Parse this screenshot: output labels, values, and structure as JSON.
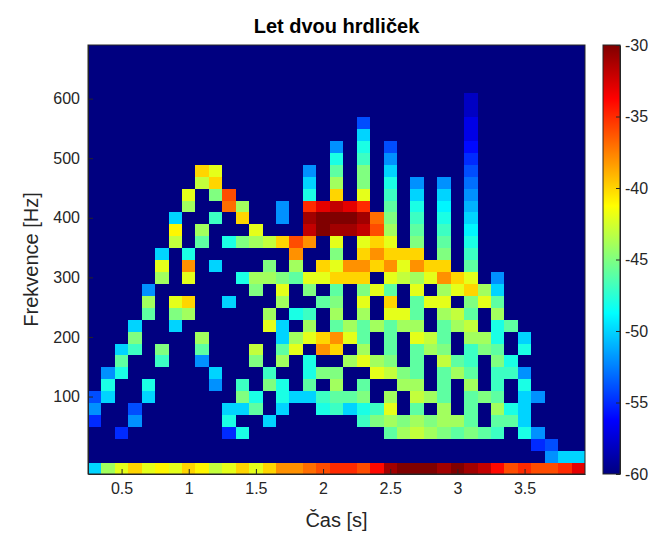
{
  "chart_data": {
    "type": "heatmap",
    "title": "Let dvou hrdliček",
    "x_label": "Čas [s]",
    "y_label": "Frekvence [Hz]",
    "x": [
      0.3,
      0.4,
      0.5,
      0.6,
      0.7,
      0.8,
      0.9,
      1.0,
      1.1,
      1.2,
      1.3,
      1.4,
      1.5,
      1.6,
      1.7,
      1.8,
      1.9,
      2.0,
      2.1,
      2.2,
      2.3,
      2.4,
      2.5,
      2.6,
      2.7,
      2.8,
      2.9,
      3.0,
      3.1,
      3.2,
      3.3,
      3.4,
      3.5,
      3.6,
      3.7,
      3.8,
      3.9
    ],
    "y": [
      -20,
      0,
      20,
      40,
      60,
      80,
      100,
      120,
      140,
      160,
      180,
      200,
      220,
      240,
      260,
      280,
      300,
      320,
      340,
      360,
      380,
      400,
      420,
      440,
      460,
      480,
      500,
      520,
      540,
      560,
      580,
      600,
      620,
      640,
      660,
      680
    ],
    "z": [
      [
        -50,
        -60,
        -60,
        -60,
        -55,
        -52,
        -54,
        -60,
        -60,
        -60,
        -60,
        -60,
        -60,
        -60,
        -60,
        -60,
        -60,
        -60,
        -60,
        -60,
        -60,
        -60,
        -60,
        -60,
        -60,
        -60,
        -60,
        -60,
        -60,
        -60,
        -60,
        -60,
        -60,
        -60,
        -60,
        -60
      ],
      [
        -44,
        -60,
        -60,
        -60,
        -60,
        -60,
        -50,
        -48,
        -52,
        -60,
        -60,
        -60,
        -60,
        -60,
        -60,
        -60,
        -60,
        -60,
        -60,
        -60,
        -60,
        -60,
        -60,
        -60,
        -60,
        -60,
        -60,
        -60,
        -60,
        -60,
        -60,
        -60,
        -60,
        -60,
        -60,
        -60
      ],
      [
        -42,
        -60,
        -60,
        -55,
        -60,
        -60,
        -60,
        -60,
        -48,
        -46,
        -50,
        -60,
        -60,
        -60,
        -60,
        -60,
        -60,
        -60,
        -60,
        -60,
        -60,
        -60,
        -60,
        -60,
        -60,
        -60,
        -60,
        -60,
        -60,
        -60,
        -60,
        -60,
        -60,
        -60,
        -60,
        -60
      ],
      [
        -40,
        -60,
        -60,
        -60,
        -52,
        -54,
        -60,
        -60,
        -60,
        -60,
        -47,
        -45,
        -50,
        -60,
        -60,
        -60,
        -60,
        -60,
        -60,
        -60,
        -60,
        -60,
        -60,
        -60,
        -60,
        -60,
        -60,
        -60,
        -60,
        -60,
        -60,
        -60,
        -60,
        -60,
        -60,
        -60
      ],
      [
        -42,
        -60,
        -60,
        -60,
        -60,
        -60,
        -50,
        -48,
        -60,
        -60,
        -60,
        -60,
        -60,
        -46,
        -44,
        -52,
        -60,
        -60,
        -60,
        -60,
        -60,
        -60,
        -60,
        -60,
        -60,
        -60,
        -60,
        -60,
        -60,
        -60,
        -60,
        -60,
        -60,
        -60,
        -60,
        -60
      ],
      [
        -41,
        -60,
        -60,
        -60,
        -60,
        -60,
        -60,
        -60,
        -60,
        -47,
        -45,
        -60,
        -60,
        -60,
        -60,
        -60,
        -44,
        -42,
        -50,
        -60,
        -60,
        -60,
        -60,
        -60,
        -60,
        -60,
        -60,
        -60,
        -60,
        -60,
        -60,
        -60,
        -60,
        -60,
        -60,
        -60
      ],
      [
        -42,
        -60,
        -60,
        -60,
        -60,
        -60,
        -60,
        -60,
        -60,
        -60,
        -60,
        -60,
        -50,
        -45,
        -42,
        -60,
        -60,
        -60,
        -60,
        -43,
        -41,
        -50,
        -60,
        -60,
        -60,
        -60,
        -60,
        -60,
        -60,
        -60,
        -60,
        -60,
        -60,
        -60,
        -60,
        -60
      ],
      [
        -40,
        -60,
        -60,
        -60,
        -60,
        -60,
        -60,
        -60,
        -60,
        -60,
        -60,
        -60,
        -60,
        -44,
        -40,
        -60,
        -42,
        -38,
        -48,
        -60,
        -60,
        -60,
        -44,
        -42,
        -60,
        -60,
        -60,
        -60,
        -60,
        -60,
        -60,
        -60,
        -60,
        -60,
        -60,
        -60
      ],
      [
        -41,
        -60,
        -60,
        -60,
        -60,
        -60,
        -60,
        -60,
        -60,
        -52,
        -46,
        -44,
        -60,
        -60,
        -60,
        -60,
        -60,
        -60,
        -60,
        -46,
        -44,
        -60,
        -60,
        -60,
        -43,
        -40,
        -60,
        -60,
        -60,
        -60,
        -60,
        -60,
        -60,
        -60,
        -60,
        -60
      ],
      [
        -43,
        -60,
        -60,
        -60,
        -60,
        -60,
        -60,
        -52,
        -50,
        -60,
        -60,
        -60,
        -60,
        -60,
        -60,
        -60,
        -60,
        -50,
        -60,
        -60,
        -60,
        -47,
        -60,
        -45,
        -40,
        -42,
        -60,
        -60,
        -60,
        -60,
        -60,
        -60,
        -60,
        -60,
        -60,
        -60
      ],
      [
        -42,
        -60,
        -60,
        -55,
        -48,
        -50,
        -60,
        -60,
        -60,
        -60,
        -60,
        -60,
        -60,
        -60,
        -50,
        -60,
        -60,
        -60,
        -60,
        -48,
        -60,
        -60,
        -37,
        -36,
        -60,
        -60,
        -60,
        -60,
        -60,
        -60,
        -60,
        -60,
        -60,
        -60,
        -60,
        -60
      ],
      [
        -40,
        -60,
        -60,
        -48,
        -60,
        -50,
        -45,
        -47,
        -60,
        -60,
        -60,
        -60,
        -60,
        -60,
        -60,
        -60,
        -48,
        -60,
        -60,
        -45,
        -60,
        -40,
        -44,
        -60,
        -60,
        -60,
        -60,
        -60,
        -60,
        -60,
        -60,
        -60,
        -60,
        -60,
        -60,
        -60
      ],
      [
        -42,
        -60,
        -60,
        -60,
        -60,
        -46,
        -48,
        -60,
        -60,
        -45,
        -43,
        -60,
        -60,
        -60,
        -60,
        -45,
        -44,
        -60,
        -60,
        -44,
        -42,
        -60,
        -60,
        -60,
        -60,
        -60,
        -60,
        -60,
        -60,
        -60,
        -60,
        -60,
        -60,
        -60,
        -60,
        -60
      ],
      [
        -40,
        -60,
        -60,
        -60,
        -50,
        -60,
        -60,
        -45,
        -47,
        -60,
        -60,
        -60,
        -42,
        -44,
        -60,
        -60,
        -44,
        -45,
        -60,
        -43,
        -60,
        -60,
        -60,
        -60,
        -60,
        -60,
        -60,
        -60,
        -60,
        -60,
        -60,
        -60,
        -60,
        -60,
        -60,
        -60
      ],
      [
        -38,
        -60,
        -60,
        -60,
        -60,
        -50,
        -48,
        -48,
        -60,
        -44,
        -46,
        -50,
        -50,
        -60,
        -44,
        -42,
        -45,
        -60,
        -60,
        -40,
        -60,
        -52,
        -52,
        -60,
        -60,
        -60,
        -60,
        -60,
        -60,
        -60,
        -60,
        -60,
        -60,
        -60,
        -60,
        -60
      ],
      [
        -38,
        -60,
        -60,
        -60,
        -60,
        -60,
        -50,
        -60,
        -60,
        -60,
        -42,
        -44,
        -60,
        -48,
        -60,
        -60,
        -46,
        -44,
        -38,
        -36,
        -60,
        -60,
        -60,
        -60,
        -60,
        -60,
        -60,
        -60,
        -60,
        -60,
        -60,
        -60,
        -60,
        -60,
        -60,
        -60
      ],
      [
        -37,
        -60,
        -60,
        -60,
        -60,
        -60,
        -50,
        -46,
        -48,
        -48,
        -60,
        -42,
        -44,
        -47,
        -60,
        -45,
        -42,
        -60,
        -60,
        -38,
        -32,
        -31,
        -35,
        -48,
        -50,
        -52,
        -60,
        -60,
        -60,
        -60,
        -60,
        -60,
        -60,
        -60,
        -60,
        -60
      ],
      [
        -36,
        -60,
        -60,
        -60,
        -60,
        -48,
        -47,
        -60,
        -45,
        -60,
        -38,
        -40,
        -60,
        -60,
        -46,
        -60,
        -42,
        -40,
        -60,
        -60,
        -30,
        -30,
        -33,
        -60,
        -60,
        -60,
        -60,
        -60,
        -60,
        -60,
        -60,
        -60,
        -60,
        -60,
        -60,
        -60
      ],
      [
        -35,
        -60,
        -60,
        -60,
        -60,
        -47,
        -46,
        -44,
        -45,
        -60,
        -40,
        -38,
        -46,
        -44,
        -45,
        -46,
        -40,
        -42,
        -45,
        -42,
        -31,
        -30,
        -32,
        -40,
        -44,
        -46,
        -48,
        -52,
        -60,
        -60,
        -60,
        -60,
        -60,
        -60,
        -60,
        -60
      ],
      [
        -35,
        -60,
        -60,
        -60,
        -60,
        -50,
        -46,
        -60,
        -60,
        -44,
        -60,
        -42,
        -44,
        -60,
        -60,
        -60,
        -40,
        -38,
        -60,
        -60,
        -31,
        -30,
        -33,
        -60,
        -60,
        -60,
        -60,
        -60,
        -60,
        -60,
        -60,
        -60,
        -60,
        -60,
        -60,
        -60
      ],
      [
        -36,
        -60,
        -60,
        -60,
        -47,
        -48,
        -45,
        -46,
        -60,
        -42,
        -44,
        -46,
        -46,
        -44,
        -42,
        -45,
        -40,
        -38,
        -40,
        -42,
        -32,
        -31,
        -35,
        -42,
        -45,
        -45,
        -47,
        -48,
        -50,
        -54,
        -60,
        -60,
        -60,
        -60,
        -60,
        -60
      ],
      [
        -34,
        -60,
        -60,
        -60,
        -45,
        -47,
        -60,
        -60,
        -42,
        -44,
        -60,
        -60,
        -44,
        -60,
        -60,
        -42,
        -60,
        -40,
        -38,
        -40,
        -36,
        -37,
        -60,
        -60,
        -60,
        -60,
        -60,
        -60,
        -60,
        -60,
        -60,
        -60,
        -60,
        -60,
        -60,
        -60
      ],
      [
        -31,
        -60,
        -60,
        -46,
        -44,
        -42,
        -44,
        -60,
        -43,
        -45,
        -46,
        -46,
        -46,
        -42,
        -40,
        -46,
        -42,
        -38,
        -40,
        -42,
        -44,
        -45,
        -46,
        -47,
        -48,
        -50,
        -52,
        -54,
        -60,
        -60,
        -60,
        -60,
        -60,
        -60,
        -60,
        -60
      ],
      [
        -30,
        -60,
        -60,
        -44,
        -45,
        -60,
        -60,
        -44,
        -45,
        -60,
        -60,
        -60,
        -44,
        -42,
        -60,
        -60,
        -43,
        -42,
        -40,
        -60,
        -60,
        -60,
        -60,
        -60,
        -60,
        -60,
        -60,
        -60,
        -60,
        -60,
        -60,
        -60,
        -60,
        -60,
        -60,
        -60
      ],
      [
        -30,
        -60,
        -60,
        -43,
        -44,
        -46,
        -43,
        -44,
        -46,
        -46,
        -46,
        -42,
        -44,
        -46,
        -46,
        -42,
        -44,
        -38,
        -40,
        -45,
        -46,
        -47,
        -48,
        -50,
        -52,
        -60,
        -60,
        -60,
        -60,
        -60,
        -60,
        -60,
        -60,
        -60,
        -60,
        -60
      ],
      [
        -30,
        -60,
        -60,
        -44,
        -45,
        -60,
        -44,
        -60,
        -60,
        -60,
        -44,
        -43,
        -60,
        -60,
        -42,
        -60,
        -42,
        -40,
        -60,
        -60,
        -60,
        -60,
        -60,
        -60,
        -60,
        -60,
        -60,
        -60,
        -60,
        -60,
        -60,
        -60,
        -60,
        -60,
        -60,
        -60
      ],
      [
        -31,
        -60,
        -60,
        -45,
        -44,
        -44,
        -46,
        -46,
        -46,
        -43,
        -45,
        -46,
        -46,
        -44,
        -42,
        -44,
        -38,
        -40,
        -45,
        -46,
        -47,
        -48,
        -49,
        -50,
        -52,
        -60,
        -60,
        -60,
        -60,
        -60,
        -60,
        -60,
        -60,
        -60,
        -60,
        -60
      ],
      [
        -30,
        -60,
        -60,
        -46,
        -44,
        -60,
        -60,
        -60,
        -44,
        -46,
        -60,
        -60,
        -44,
        -43,
        -60,
        -42,
        -40,
        -60,
        -60,
        -60,
        -60,
        -60,
        -60,
        -60,
        -60,
        -60,
        -60,
        -60,
        -60,
        -60,
        -60,
        -60,
        -60,
        -60,
        -60,
        -60
      ],
      [
        -31,
        -60,
        -60,
        -45,
        -46,
        -46,
        -46,
        -44,
        -46,
        -47,
        -47,
        -44,
        -43,
        -46,
        -45,
        -40,
        -42,
        -46,
        -47,
        -48,
        -49,
        -50,
        -51,
        -52,
        -53,
        -54,
        -55,
        -56,
        -57,
        -57,
        -58,
        -58,
        -60,
        -60,
        -60,
        -60
      ],
      [
        -32,
        -60,
        -60,
        -46,
        -60,
        -60,
        -45,
        -60,
        -60,
        -60,
        -45,
        -44,
        -60,
        -60,
        -42,
        -44,
        -60,
        -60,
        -60,
        -60,
        -60,
        -60,
        -60,
        -60,
        -60,
        -60,
        -60,
        -60,
        -60,
        -60,
        -60,
        -60,
        -60,
        -60,
        -60,
        -60
      ],
      [
        -34,
        -60,
        -60,
        -47,
        -46,
        -44,
        -46,
        -47,
        -47,
        -45,
        -46,
        -48,
        -48,
        -44,
        -46,
        -50,
        -52,
        -60,
        -60,
        -60,
        -60,
        -60,
        -60,
        -60,
        -60,
        -60,
        -60,
        -60,
        -60,
        -60,
        -60,
        -60,
        -60,
        -60,
        -60,
        -60
      ],
      [
        -36,
        -60,
        -60,
        -60,
        -46,
        -48,
        -60,
        -60,
        -47,
        -48,
        -60,
        -60,
        -46,
        -60,
        -60,
        -60,
        -60,
        -60,
        -60,
        -60,
        -60,
        -60,
        -60,
        -60,
        -60,
        -60,
        -60,
        -60,
        -60,
        -60,
        -60,
        -60,
        -60,
        -60,
        -60,
        -60
      ],
      [
        -35,
        -60,
        -60,
        -48,
        -50,
        -50,
        -50,
        -48,
        -52,
        -60,
        -48,
        -50,
        -60,
        -60,
        -60,
        -60,
        -60,
        -60,
        -60,
        -60,
        -60,
        -60,
        -60,
        -60,
        -60,
        -60,
        -60,
        -60,
        -60,
        -60,
        -60,
        -60,
        -60,
        -60,
        -60,
        -60
      ],
      [
        -36,
        -60,
        -55,
        -52,
        -60,
        -60,
        -52,
        -60,
        -60,
        -60,
        -60,
        -60,
        -60,
        -60,
        -60,
        -60,
        -60,
        -60,
        -60,
        -60,
        -60,
        -60,
        -60,
        -60,
        -60,
        -60,
        -60,
        -60,
        -60,
        -60,
        -60,
        -60,
        -60,
        -60,
        -60,
        -60
      ],
      [
        -36,
        -52,
        -54,
        -60,
        -60,
        -60,
        -60,
        -60,
        -60,
        -60,
        -60,
        -60,
        -60,
        -60,
        -60,
        -60,
        -60,
        -60,
        -60,
        -60,
        -60,
        -60,
        -60,
        -60,
        -60,
        -60,
        -60,
        -60,
        -60,
        -60,
        -60,
        -60,
        -60,
        -60,
        -60,
        -60
      ],
      [
        -35,
        -50,
        -60,
        -60,
        -60,
        -60,
        -60,
        -60,
        -60,
        -60,
        -60,
        -60,
        -60,
        -60,
        -60,
        -60,
        -60,
        -60,
        -60,
        -60,
        -60,
        -60,
        -60,
        -60,
        -60,
        -60,
        -60,
        -60,
        -60,
        -60,
        -60,
        -60,
        -60,
        -60,
        -60,
        -60
      ],
      [
        -33,
        -50,
        -60,
        -60,
        -60,
        -60,
        -60,
        -60,
        -60,
        -60,
        -60,
        -60,
        -60,
        -60,
        -60,
        -60,
        -60,
        -60,
        -60,
        -60,
        -60,
        -60,
        -60,
        -60,
        -60,
        -60,
        -60,
        -60,
        -60,
        -60,
        -60,
        -60,
        -60,
        -60,
        -60,
        -60
      ]
    ],
    "xlim": [
      0.25,
      3.95
    ],
    "ylim": [
      -30,
      690
    ],
    "xticks": [
      0.5,
      1,
      1.5,
      2,
      2.5,
      3,
      3.5
    ],
    "yticks": [
      100,
      200,
      300,
      400,
      500,
      600
    ],
    "zlim": [
      -60,
      -30
    ],
    "zticks": [
      -60,
      -55,
      -50,
      -45,
      -40,
      -35,
      -30
    ]
  }
}
